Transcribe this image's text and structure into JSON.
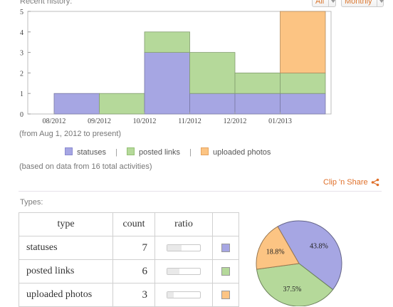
{
  "history": {
    "label": "Recent history:",
    "filter_value": "All",
    "period_value": "Monthly",
    "range_note": "(from Aug 1, 2012 to present)",
    "data_note": "(based on data from 16 total activities)"
  },
  "chart_data": {
    "type": "bar",
    "stacked": true,
    "categories": [
      "08/2012",
      "09/2012",
      "10/2012",
      "11/2012",
      "12/2012",
      "01/2013"
    ],
    "series": [
      {
        "name": "statuses",
        "values": [
          1,
          0,
          3,
          1,
          1,
          1
        ],
        "color": "#a6a6e3"
      },
      {
        "name": "posted links",
        "values": [
          0,
          1,
          1,
          2,
          1,
          1
        ],
        "color": "#b5d99a"
      },
      {
        "name": "uploaded photos",
        "values": [
          0,
          0,
          0,
          0,
          0,
          3
        ],
        "color": "#fcc483"
      }
    ],
    "ylim": [
      0,
      5
    ],
    "yticks": [
      "0",
      "1",
      "2",
      "3",
      "4",
      "5"
    ],
    "grid": false,
    "legend": "bottom"
  },
  "legend_items": [
    {
      "label": "statuses",
      "color": "#a6a6e3"
    },
    {
      "label": "posted links",
      "color": "#b5d99a"
    },
    {
      "label": "uploaded photos",
      "color": "#fcc483"
    }
  ],
  "legend_sep": "|",
  "clip_share": {
    "label": "Clip 'n Share",
    "icon": "share-icon"
  },
  "types": {
    "label": "Types:",
    "headers": [
      "type",
      "count",
      "ratio"
    ],
    "rows": [
      {
        "type": "statuses",
        "count": "7",
        "ratio": 0.438,
        "color": "#a6a6e3"
      },
      {
        "type": "posted links",
        "count": "6",
        "ratio": 0.375,
        "color": "#b5d99a"
      },
      {
        "type": "uploaded photos",
        "count": "3",
        "ratio": 0.188,
        "color": "#fcc483"
      }
    ]
  },
  "pie": {
    "slices": [
      {
        "name": "statuses",
        "value": 43.8,
        "label": "43.8%",
        "color": "#a6a6e3"
      },
      {
        "name": "posted links",
        "value": 37.5,
        "label": "37.5%",
        "color": "#b5d99a"
      },
      {
        "name": "uploaded photos",
        "value": 18.8,
        "label": "18.8%",
        "color": "#fcc483"
      }
    ]
  }
}
